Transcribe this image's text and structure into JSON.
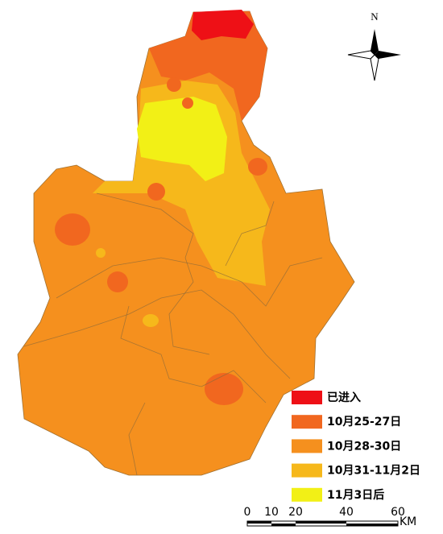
{
  "north_label": "N",
  "legend": {
    "items": [
      {
        "label": "已进入",
        "color": "#ee1016"
      },
      {
        "label": "10月25-27日",
        "color": "#f1671f"
      },
      {
        "label": "10月28-30日",
        "color": "#f5901e"
      },
      {
        "label": "10月31-11月2日",
        "color": "#f6b81b"
      },
      {
        "label": "11月3日后",
        "color": "#f2f016"
      }
    ]
  },
  "scale_bar": {
    "labels": [
      "0",
      "10",
      "20",
      "40",
      "60"
    ],
    "unit": "KM"
  }
}
